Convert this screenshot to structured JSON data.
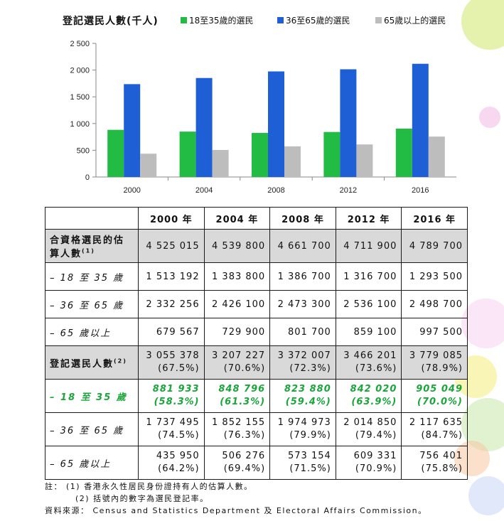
{
  "legend": {
    "title": "登記選民人數(千人)",
    "items": [
      {
        "label": "18至35歲的選民",
        "color": "#22bb44"
      },
      {
        "label": "36至65歲的選民",
        "color": "#1f5fd6"
      },
      {
        "label": "65歲以上的選民",
        "color": "#bdbdbd"
      }
    ]
  },
  "chart_data": {
    "type": "bar",
    "title": "登記選民人數(千人)",
    "categories": [
      "2000",
      "2004",
      "2008",
      "2012",
      "2016"
    ],
    "series": [
      {
        "name": "18至35歲的選民",
        "values": [
          882,
          849,
          824,
          842,
          905
        ],
        "color": "#22bb44"
      },
      {
        "name": "36至65歲的選民",
        "values": [
          1737,
          1852,
          1975,
          2015,
          2118
        ],
        "color": "#1f5fd6"
      },
      {
        "name": "65歲以上的選民",
        "values": [
          436,
          506,
          573,
          609,
          756
        ],
        "color": "#bdbdbd"
      }
    ],
    "ylim": [
      0,
      2500
    ],
    "yticks": [
      "0",
      "500",
      "1 000",
      "1 500",
      "2 000",
      "2 500"
    ],
    "ytick_values": [
      0,
      500,
      1000,
      1500,
      2000,
      2500
    ],
    "grid": false,
    "legend_position": "top"
  },
  "table": {
    "headers": [
      "",
      "2000 年",
      "2004 年",
      "2008 年",
      "2012 年",
      "2016 年"
    ],
    "rows": [
      {
        "label": "合資格選民的估算人數",
        "note": "(1)",
        "values": [
          "4 525 015",
          "4 539 800",
          "4 661 700",
          "4 711 900",
          "4 789 700"
        ]
      },
      {
        "label": "– 18 至 35 歲",
        "values": [
          "1 513 192",
          "1 383 800",
          "1 386 700",
          "1 316 700",
          "1 293 500"
        ]
      },
      {
        "label": "– 36 至 65 歲",
        "values": [
          "2 332 256",
          "2 426 100",
          "2 473 300",
          "2 536 100",
          "2 498 700"
        ]
      },
      {
        "label": "– 65 歲以上",
        "values": [
          "679 567",
          "729 900",
          "801 700",
          "859 100",
          "997 500"
        ]
      },
      {
        "label": "登記選民人數",
        "note": "(2)",
        "values": [
          "3 055 378",
          "3 207 227",
          "3 372 007",
          "3 466 201",
          "3 779 085"
        ],
        "pct": [
          "(67.5%)",
          "(70.6%)",
          "(72.3%)",
          "(73.6%)",
          "(78.9%)"
        ]
      },
      {
        "label": "– 18 至 35 歲",
        "values": [
          "881 933",
          "848 796",
          "823 880",
          "842 020",
          "905 049"
        ],
        "pct": [
          "(58.3%)",
          "(61.3%)",
          "(59.4%)",
          "(63.9%)",
          "(70.0%)"
        ]
      },
      {
        "label": "– 36 至 65 歲",
        "values": [
          "1 737 495",
          "1 852 155",
          "1 974 973",
          "2 014 850",
          "2 117 635"
        ],
        "pct": [
          "(74.5%)",
          "(76.3%)",
          "(79.9%)",
          "(79.4%)",
          "(84.7%)"
        ]
      },
      {
        "label": "– 65 歲以上",
        "values": [
          "435 950",
          "506 276",
          "573 154",
          "609 331",
          "756 401"
        ],
        "pct": [
          "(64.2%)",
          "(69.4%)",
          "(71.5%)",
          "(70.9%)",
          "(75.8%)"
        ]
      }
    ]
  },
  "notes": {
    "note1": "註： (1)  香港永久性居民身份證持有人的估算人數。",
    "note2": "(2)  括號內的數字為選民登記率。",
    "source": "資料來源： Census and Statistics Department 及  Electoral Affairs Commission。"
  }
}
